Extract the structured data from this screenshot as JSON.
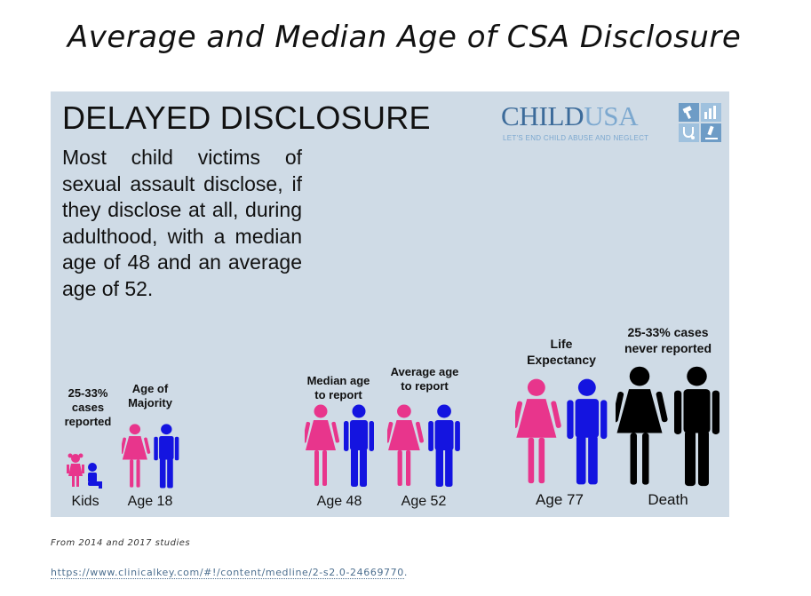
{
  "page": {
    "title": "Average and Median Age of CSA Disclosure"
  },
  "infographic": {
    "heading": "DELAYED DISCLOSURE",
    "body": "Most child victims of sexual assault disclose, if they disclose at all, during adulthood, with a median age of 48 and an average age of 52.",
    "logo": {
      "name_part1": "CHILD",
      "name_part2": "USA",
      "tagline": "LET'S END CHILD ABUSE AND NEGLECT",
      "icons": [
        "gavel-icon",
        "bar-chart-icon",
        "stethoscope-icon",
        "microscope-icon"
      ]
    },
    "groups": [
      {
        "caption": "25-33% cases reported",
        "age_label": "Kids",
        "figure": "children-icon",
        "color": "#e8358c"
      },
      {
        "caption": "Age of Majority",
        "age_label": "Age 18",
        "figure": "woman-man-icon"
      },
      {
        "caption": "Median age to report",
        "age_label": "Age 48",
        "figure": "woman-man-icon"
      },
      {
        "caption": "Average age to report",
        "age_label": "Age 52",
        "figure": "woman-man-icon"
      },
      {
        "caption": "Life Expectancy",
        "age_label": "Age 77",
        "figure": "woman-man-icon"
      },
      {
        "caption": "25-33% cases never reported",
        "age_label": "Death",
        "figure": "woman-man-black-icon"
      }
    ],
    "colors": {
      "female": "#e8358c",
      "male": "#1414e0",
      "deceased": "#000000",
      "panel_background": "#cfdbe6"
    }
  },
  "footer": {
    "source_note": "From 2014 and 2017 studies",
    "url": "https://www.clinicalkey.com/#!/content/medline/2-s2.0-24669770",
    "url_suffix": "."
  }
}
